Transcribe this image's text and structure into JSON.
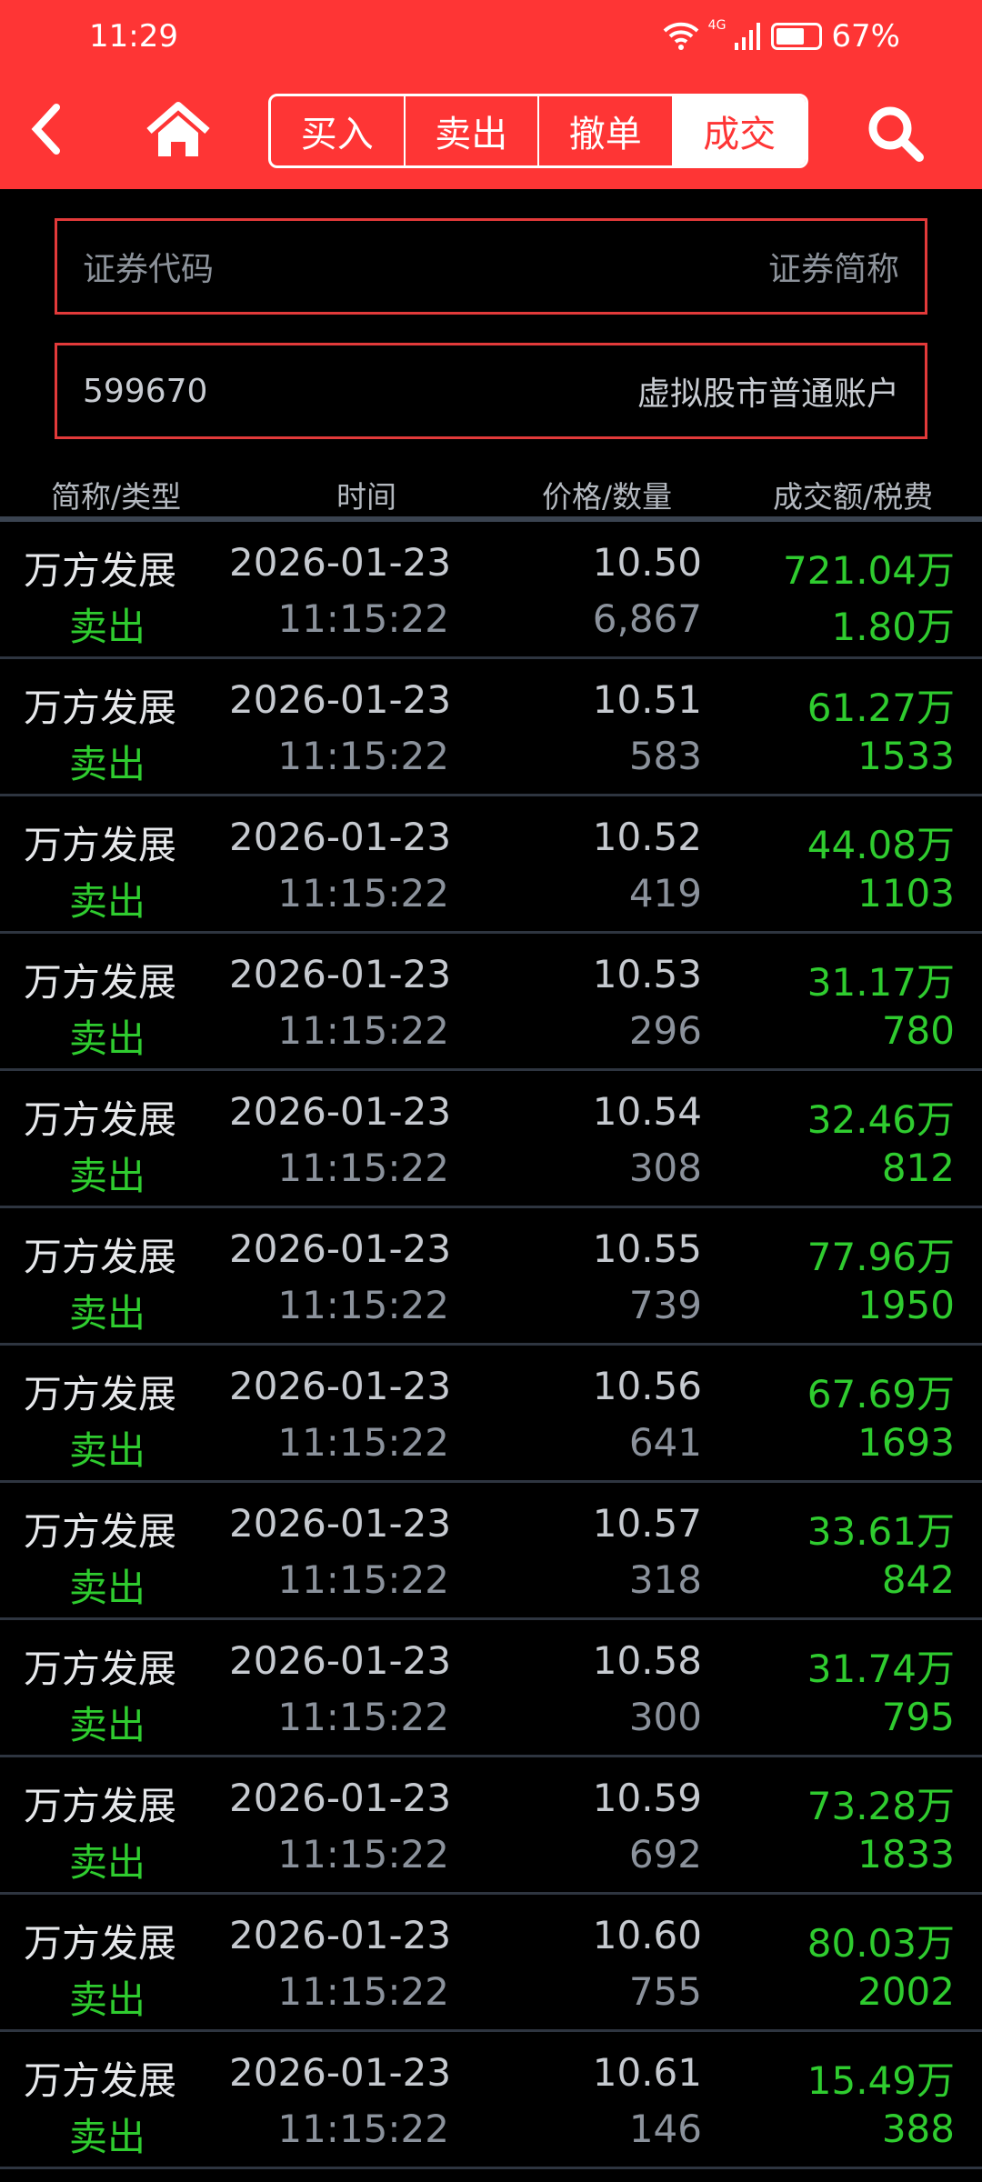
{
  "status": {
    "time": "11:29",
    "network": "4G",
    "battery": "67%"
  },
  "nav": {
    "tabs": [
      "买入",
      "卖出",
      "撤单",
      "成交"
    ],
    "active_tab": "成交"
  },
  "filter": {
    "code_placeholder": "证券代码",
    "name_placeholder": "证券简称",
    "account_code": "599670",
    "account_name": "虚拟股市普通账户"
  },
  "columns": [
    "简称/类型",
    "时间",
    "价格/数量",
    "成交额/税费"
  ],
  "colors": {
    "header": "#fe3535",
    "sell": "#2fcc2f"
  },
  "rows": [
    {
      "name": "万方发展",
      "type": "卖出",
      "date": "2026-01-23",
      "time": "11:15:22",
      "price": "10.50",
      "qty": "6,867",
      "amount": "721.04万",
      "fee": "1.80万"
    },
    {
      "name": "万方发展",
      "type": "卖出",
      "date": "2026-01-23",
      "time": "11:15:22",
      "price": "10.51",
      "qty": "583",
      "amount": "61.27万",
      "fee": "1533"
    },
    {
      "name": "万方发展",
      "type": "卖出",
      "date": "2026-01-23",
      "time": "11:15:22",
      "price": "10.52",
      "qty": "419",
      "amount": "44.08万",
      "fee": "1103"
    },
    {
      "name": "万方发展",
      "type": "卖出",
      "date": "2026-01-23",
      "time": "11:15:22",
      "price": "10.53",
      "qty": "296",
      "amount": "31.17万",
      "fee": "780"
    },
    {
      "name": "万方发展",
      "type": "卖出",
      "date": "2026-01-23",
      "time": "11:15:22",
      "price": "10.54",
      "qty": "308",
      "amount": "32.46万",
      "fee": "812"
    },
    {
      "name": "万方发展",
      "type": "卖出",
      "date": "2026-01-23",
      "time": "11:15:22",
      "price": "10.55",
      "qty": "739",
      "amount": "77.96万",
      "fee": "1950"
    },
    {
      "name": "万方发展",
      "type": "卖出",
      "date": "2026-01-23",
      "time": "11:15:22",
      "price": "10.56",
      "qty": "641",
      "amount": "67.69万",
      "fee": "1693"
    },
    {
      "name": "万方发展",
      "type": "卖出",
      "date": "2026-01-23",
      "time": "11:15:22",
      "price": "10.57",
      "qty": "318",
      "amount": "33.61万",
      "fee": "842"
    },
    {
      "name": "万方发展",
      "type": "卖出",
      "date": "2026-01-23",
      "time": "11:15:22",
      "price": "10.58",
      "qty": "300",
      "amount": "31.74万",
      "fee": "795"
    },
    {
      "name": "万方发展",
      "type": "卖出",
      "date": "2026-01-23",
      "time": "11:15:22",
      "price": "10.59",
      "qty": "692",
      "amount": "73.28万",
      "fee": "1833"
    },
    {
      "name": "万方发展",
      "type": "卖出",
      "date": "2026-01-23",
      "time": "11:15:22",
      "price": "10.60",
      "qty": "755",
      "amount": "80.03万",
      "fee": "2002"
    },
    {
      "name": "万方发展",
      "type": "卖出",
      "date": "2026-01-23",
      "time": "11:15:22",
      "price": "10.61",
      "qty": "146",
      "amount": "15.49万",
      "fee": "388"
    }
  ]
}
